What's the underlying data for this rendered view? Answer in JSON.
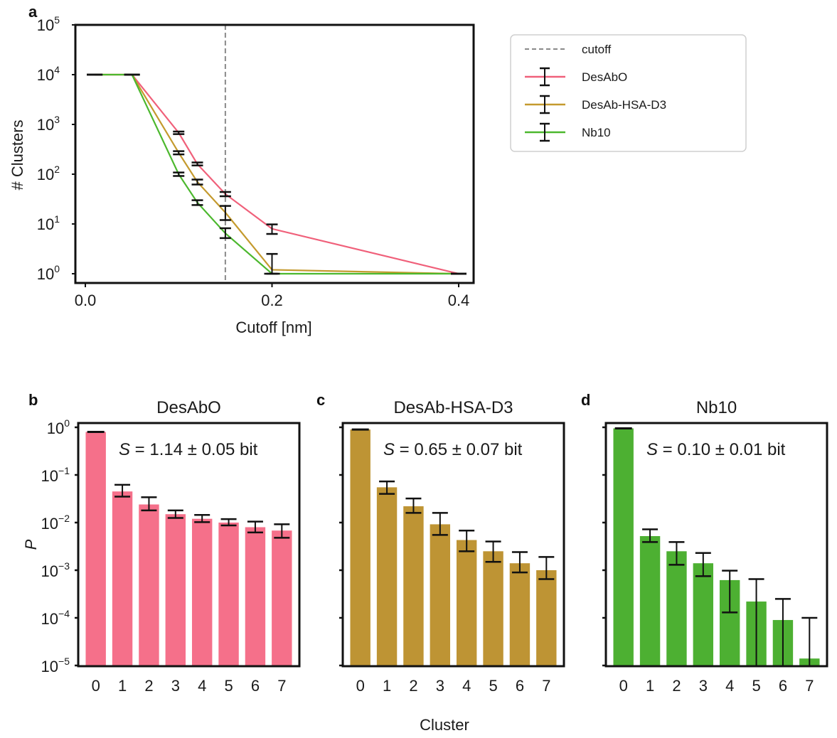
{
  "chart_data": [
    {
      "id": "a",
      "type": "line",
      "panel_letter": "a",
      "title": "",
      "xlabel": "Cutoff [nm]",
      "ylabel": "# Clusters",
      "yscale": "log",
      "xlim": [
        -0.01,
        0.42
      ],
      "ylim": [
        0.55,
        100000
      ],
      "x_ticks": [
        {
          "v": 0.0,
          "label": "0.0"
        },
        {
          "v": 0.2,
          "label": "0.2"
        },
        {
          "v": 0.4,
          "label": "0.4"
        }
      ],
      "y_ticks": [
        {
          "v": 1,
          "base": "10",
          "exp": "0"
        },
        {
          "v": 10,
          "base": "10",
          "exp": "1"
        },
        {
          "v": 100,
          "base": "10",
          "exp": "2"
        },
        {
          "v": 1000,
          "base": "10",
          "exp": "3"
        },
        {
          "v": 10000,
          "base": "10",
          "exp": "4"
        },
        {
          "v": 100000,
          "base": "10",
          "exp": "5"
        }
      ],
      "cutoff_line": {
        "x": 0.15,
        "label": "cutoff",
        "color": "#8a8a8a"
      },
      "legend_position": "outside-right",
      "series": [
        {
          "name": "DesAbO",
          "color": "#f0607a",
          "x": [
            0.01,
            0.05,
            0.1,
            0.12,
            0.15,
            0.2,
            0.4
          ],
          "y": [
            10000,
            10000,
            680,
            160,
            40,
            8,
            1
          ],
          "err_low": [
            10000,
            10000,
            640,
            150,
            36,
            6.3,
            1
          ],
          "err_high": [
            10000,
            10000,
            720,
            172,
            44,
            9.8,
            1
          ]
        },
        {
          "name": "DesAb-HSA-D3",
          "color": "#c49a2e",
          "x": [
            0.01,
            0.05,
            0.1,
            0.12,
            0.15,
            0.2,
            0.4
          ],
          "y": [
            10000,
            10000,
            270,
            70,
            17,
            1.2,
            1
          ],
          "err_low": [
            10000,
            10000,
            250,
            62,
            12,
            1,
            1
          ],
          "err_high": [
            10000,
            10000,
            290,
            78,
            23,
            2.5,
            1
          ]
        },
        {
          "name": "Nb10",
          "color": "#4cb82e",
          "x": [
            0.01,
            0.05,
            0.1,
            0.12,
            0.15,
            0.2,
            0.4
          ],
          "y": [
            10000,
            10000,
            100,
            27,
            6.5,
            1,
            1
          ],
          "err_low": [
            10000,
            10000,
            92,
            24,
            5.2,
            1,
            1
          ],
          "err_high": [
            10000,
            10000,
            108,
            30,
            8.2,
            1,
            1
          ]
        }
      ]
    },
    {
      "id": "b",
      "type": "bar",
      "panel_letter": "b",
      "title": "DesAbO",
      "annotation": {
        "symbol": "S",
        "text": " = 1.14 ± 0.05 bit"
      },
      "color": "#f5708a",
      "yscale": "log",
      "ylim": [
        1e-05,
        1
      ],
      "ylabel": "P",
      "categories": [
        "0",
        "1",
        "2",
        "3",
        "4",
        "5",
        "6",
        "7"
      ],
      "values": [
        0.8,
        0.045,
        0.024,
        0.015,
        0.012,
        0.01,
        0.008,
        0.0068
      ],
      "err_low": [
        0.78,
        0.035,
        0.018,
        0.0125,
        0.0102,
        0.0087,
        0.0062,
        0.0048
      ],
      "err_high": [
        0.82,
        0.062,
        0.034,
        0.018,
        0.0145,
        0.0118,
        0.0105,
        0.0092
      ],
      "show_y_labels": true
    },
    {
      "id": "c",
      "type": "bar",
      "panel_letter": "c",
      "title": "DesAb-HSA-D3",
      "annotation": {
        "symbol": "S",
        "text": " = 0.65 ± 0.07 bit"
      },
      "color": "#be9434",
      "yscale": "log",
      "ylim": [
        1e-05,
        1
      ],
      "categories": [
        "0",
        "1",
        "2",
        "3",
        "4",
        "5",
        "6",
        "7"
      ],
      "values": [
        0.9,
        0.055,
        0.022,
        0.0092,
        0.0043,
        0.0025,
        0.0014,
        0.001
      ],
      "err_low": [
        0.88,
        0.04,
        0.016,
        0.0055,
        0.0025,
        0.0015,
        0.0009,
        0.00065
      ],
      "err_high": [
        0.92,
        0.073,
        0.032,
        0.016,
        0.0068,
        0.004,
        0.0024,
        0.0019
      ],
      "show_y_labels": false
    },
    {
      "id": "d",
      "type": "bar",
      "panel_letter": "d",
      "title": "Nb10",
      "annotation": {
        "symbol": "S",
        "text": " = 0.10 ± 0.01 bit"
      },
      "color": "#4db032",
      "yscale": "log",
      "ylim": [
        1e-05,
        1
      ],
      "categories": [
        "0",
        "1",
        "2",
        "3",
        "4",
        "5",
        "6",
        "7"
      ],
      "values": [
        0.95,
        0.0052,
        0.0025,
        0.0014,
        0.00062,
        0.00022,
        9e-05,
        1.4e-05
      ],
      "err_low": [
        0.93,
        0.0039,
        0.0013,
        0.00075,
        0.00013,
        1e-05,
        1e-05,
        1e-05
      ],
      "err_high": [
        0.97,
        0.0072,
        0.0039,
        0.0023,
        0.00098,
        0.00065,
        0.00025,
        0.0001
      ],
      "show_y_labels": false
    }
  ],
  "shared": {
    "bar_xlabel": "Cluster",
    "bar_ylabel": "P"
  }
}
